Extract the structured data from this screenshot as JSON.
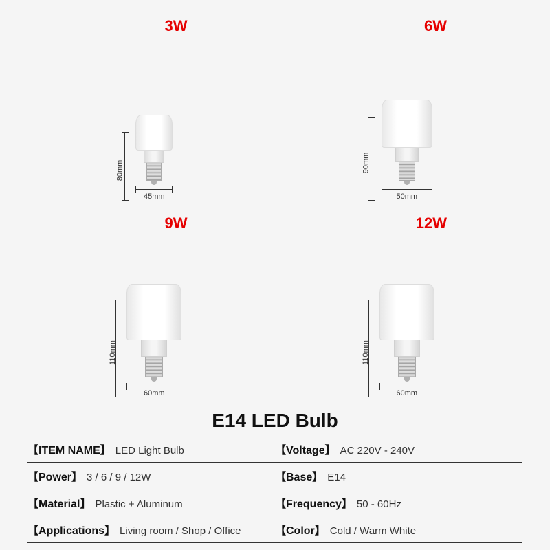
{
  "title": "E14 LED Bulb",
  "wattage_color": "#e60000",
  "bulbs": [
    {
      "wattage": "3W",
      "height_label": "80mm",
      "width_label": "45mm",
      "top_w": 54,
      "top_h": 52,
      "neck_w": 30,
      "neck_h": 18,
      "screw_w": 22,
      "screw_h": 26,
      "hline": 100
    },
    {
      "wattage": "6W",
      "height_label": "90mm",
      "width_label": "50mm",
      "top_w": 74,
      "top_h": 70,
      "neck_w": 34,
      "neck_h": 20,
      "screw_w": 24,
      "screw_h": 28,
      "hline": 122
    },
    {
      "wattage": "9W",
      "height_label": "110mm",
      "width_label": "60mm",
      "top_w": 80,
      "top_h": 82,
      "neck_w": 38,
      "neck_h": 24,
      "screw_w": 26,
      "screw_h": 30,
      "hline": 142
    },
    {
      "wattage": "12W",
      "height_label": "110mm",
      "width_label": "60mm",
      "top_w": 80,
      "top_h": 82,
      "neck_w": 38,
      "neck_h": 24,
      "screw_w": 26,
      "screw_h": 30,
      "hline": 142
    }
  ],
  "specs": [
    {
      "left_key": "【ITEM NAME】",
      "left_val": "LED Light Bulb",
      "right_key": "【Voltage】",
      "right_val": "AC 220V - 240V"
    },
    {
      "left_key": "【Power】",
      "left_val": "3 / 6 / 9 / 12W",
      "right_key": "【Base】",
      "right_val": "E14"
    },
    {
      "left_key": "【Material】",
      "left_val": "Plastic + Aluminum",
      "right_key": "【Frequency】",
      "right_val": "50 - 60Hz"
    },
    {
      "left_key": "【Applications】",
      "left_val": "Living room / Shop / Office",
      "right_key": "【Color】",
      "right_val": "Cold / Warm White"
    }
  ]
}
